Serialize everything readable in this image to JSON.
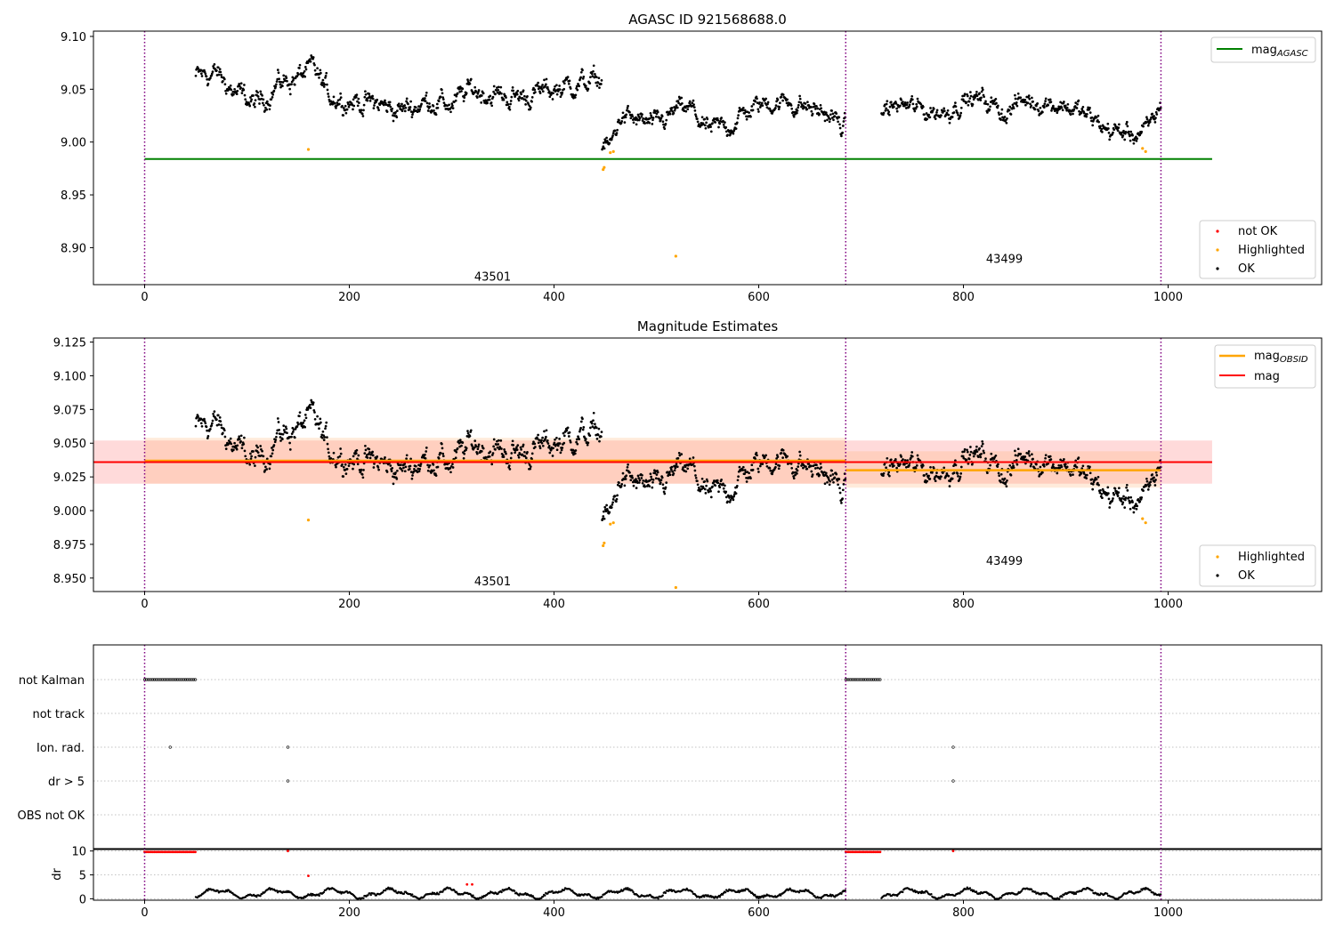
{
  "colors": {
    "ok": "#000000",
    "highlighted": "#ffa500",
    "not_ok": "#ff0000",
    "agasc": "#008000",
    "obs_mean": "#ffa500",
    "mean": "#ff0000",
    "obsid_line": "#800080",
    "grid": "#b0b0b0"
  },
  "chart_data": [
    {
      "type": "scatter",
      "title": "AGASC ID 921568688.0",
      "xlim": [
        -50,
        1150
      ],
      "ylim": [
        8.865,
        9.105
      ],
      "xticks": [
        0,
        200,
        400,
        600,
        800,
        1000
      ],
      "yticks": [
        "8.90",
        "8.95",
        "9.00",
        "9.05",
        "9.10"
      ],
      "obsid_boundaries": [
        0,
        685,
        993
      ],
      "obsid_labels": [
        {
          "text": "43501",
          "x": 340,
          "y": 8.873
        },
        {
          "text": "43499",
          "x": 840,
          "y": 8.89
        }
      ],
      "lines": [
        {
          "name": "mag_AGASC",
          "name_main": "mag",
          "name_sub": "AGASC",
          "x": [
            0,
            1043
          ],
          "y": [
            8.984,
            8.984
          ]
        }
      ],
      "legends": [
        [
          "mag_AGASC"
        ],
        [
          "not OK",
          "Highlighted",
          "OK"
        ]
      ],
      "series": [
        {
          "name": "OK",
          "segments": [
            {
              "x0": 50,
              "x1": 447,
              "knots": [
                [
                  50,
                  9.062
                ],
                [
                  70,
                  9.065
                ],
                [
                  90,
                  9.045
                ],
                [
                  110,
                  9.035
                ],
                [
                  130,
                  9.055
                ],
                [
                  150,
                  9.062
                ],
                [
                  165,
                  9.068
                ],
                [
                  180,
                  9.045
                ],
                [
                  200,
                  9.04
                ],
                [
                  230,
                  9.035
                ],
                [
                  250,
                  9.03
                ],
                [
                  280,
                  9.04
                ],
                [
                  300,
                  9.035
                ],
                [
                  320,
                  9.05
                ],
                [
                  340,
                  9.045
                ],
                [
                  360,
                  9.042
                ],
                [
                  380,
                  9.045
                ],
                [
                  400,
                  9.05
                ],
                [
                  420,
                  9.055
                ],
                [
                  447,
                  9.058
                ]
              ],
              "noise": 0.011
            },
            {
              "x0": 447,
              "x1": 685,
              "knots": [
                [
                  447,
                  8.998
                ],
                [
                  455,
                  8.995
                ],
                [
                  465,
                  9.025
                ],
                [
                  480,
                  9.02
                ],
                [
                  500,
                  9.015
                ],
                [
                  520,
                  9.03
                ],
                [
                  535,
                  9.03
                ],
                [
                  550,
                  9.01
                ],
                [
                  570,
                  9.015
                ],
                [
                  590,
                  9.03
                ],
                [
                  610,
                  9.038
                ],
                [
                  630,
                  9.038
                ],
                [
                  650,
                  9.032
                ],
                [
                  670,
                  9.025
                ],
                [
                  685,
                  9.012
                ]
              ],
              "noise": 0.01
            },
            {
              "x0": 720,
              "x1": 993,
              "knots": [
                [
                  720,
                  9.032
                ],
                [
                  740,
                  9.035
                ],
                [
                  760,
                  9.03
                ],
                [
                  780,
                  9.028
                ],
                [
                  800,
                  9.04
                ],
                [
                  820,
                  9.04
                ],
                [
                  840,
                  9.028
                ],
                [
                  860,
                  9.04
                ],
                [
                  880,
                  9.038
                ],
                [
                  900,
                  9.035
                ],
                [
                  920,
                  9.025
                ],
                [
                  940,
                  9.012
                ],
                [
                  960,
                  9.008
                ],
                [
                  980,
                  9.01
                ],
                [
                  993,
                  9.035
                ]
              ],
              "noise": 0.01
            }
          ]
        },
        {
          "name": "Highlighted",
          "points": [
            [
              160,
              8.993
            ],
            [
              448,
              8.974
            ],
            [
              449,
              8.976
            ],
            [
              455,
              8.99
            ],
            [
              458,
              8.991
            ],
            [
              519,
              8.892
            ],
            [
              975,
              8.994
            ],
            [
              978,
              8.991
            ]
          ]
        }
      ]
    },
    {
      "type": "scatter",
      "title": "Magnitude Estimates",
      "xlim": [
        -50,
        1150
      ],
      "ylim": [
        8.94,
        9.128
      ],
      "xticks": [
        0,
        200,
        400,
        600,
        800,
        1000
      ],
      "yticks": [
        "8.950",
        "8.975",
        "9.000",
        "9.025",
        "9.050",
        "9.075",
        "9.100",
        "9.125"
      ],
      "obsid_boundaries": [
        0,
        685,
        993
      ],
      "obsid_labels": [
        {
          "text": "43501",
          "x": 340,
          "y": 8.948
        },
        {
          "text": "43499",
          "x": 840,
          "y": 8.963
        }
      ],
      "lines": [
        {
          "name": "mag_OBSID",
          "name_main": "mag",
          "name_sub": "OBSID",
          "segments": [
            {
              "x": [
                0,
                685
              ],
              "y": 9.037
            },
            {
              "x": [
                685,
                993
              ],
              "y": 9.03
            }
          ]
        },
        {
          "name": "mag",
          "x": [
            -50,
            1043
          ],
          "y": [
            9.036,
            9.036
          ]
        }
      ],
      "bands": [
        {
          "color": "#ff6b6b",
          "x": [
            -50,
            1043
          ],
          "y": [
            9.02,
            9.052
          ]
        },
        {
          "color": "#ffb070",
          "x": [
            0,
            685
          ],
          "y": [
            9.02,
            9.054
          ]
        },
        {
          "color": "#ffb070",
          "x": [
            685,
            993
          ],
          "y": [
            9.017,
            9.044
          ]
        }
      ],
      "legends": [
        [
          "mag_OBSID",
          "mag"
        ],
        [
          "Highlighted",
          "OK"
        ]
      ],
      "series": [
        {
          "name": "OK",
          "segments": "same as panel 1"
        },
        {
          "name": "Highlighted",
          "points": [
            [
              160,
              8.993
            ],
            [
              448,
              8.974
            ],
            [
              449,
              8.976
            ],
            [
              455,
              8.99
            ],
            [
              458,
              8.991
            ],
            [
              519,
              8.943
            ],
            [
              975,
              8.994
            ],
            [
              978,
              8.991
            ]
          ]
        }
      ]
    },
    {
      "type": "scatter",
      "title": "",
      "xlim": [
        -50,
        1150
      ],
      "xticks": [
        0,
        200,
        400,
        600,
        800,
        1000
      ],
      "categories": [
        "not Kalman",
        "not track",
        "Ion. rad.",
        "dr > 5",
        "OBS not OK"
      ],
      "flags": {
        "not Kalman": [
          [
            0,
            50
          ],
          [
            685,
            720
          ]
        ],
        "Ion. rad.": [
          25,
          140,
          790
        ],
        "dr > 5": [
          140,
          790
        ]
      },
      "obsid_boundaries": [
        0,
        685,
        993
      ]
    },
    {
      "type": "scatter",
      "title": "",
      "ylabel": "dr",
      "xlim": [
        -50,
        1150
      ],
      "ylim": [
        -0.3,
        10.5
      ],
      "xticks": [
        0,
        200,
        400,
        600,
        800,
        1000
      ],
      "yticks": [
        0,
        5,
        10
      ],
      "red_points": {
        "capped": [
          [
            0,
            50
          ],
          [
            685,
            720
          ]
        ],
        "singles": [
          [
            140,
            10
          ],
          [
            160,
            4.8
          ],
          [
            315,
            3
          ],
          [
            320,
            3
          ],
          [
            790,
            10
          ]
        ]
      },
      "ok_segments": [
        [
          50,
          685
        ],
        [
          720,
          993
        ]
      ],
      "obsid_boundaries": [
        0,
        685,
        993
      ]
    }
  ]
}
